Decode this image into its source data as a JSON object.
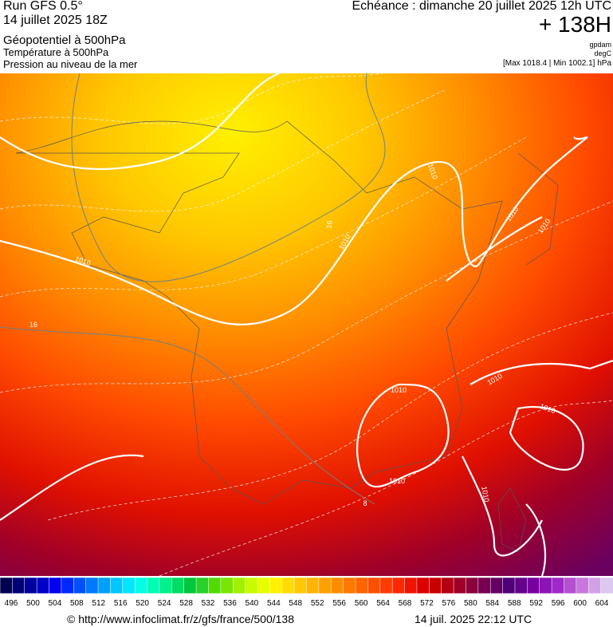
{
  "header": {
    "run": "Run GFS 0.5°",
    "date": "14 juillet 2025 18Z",
    "field1": "Géopotentiel à 500hPa",
    "field2": "Température à 500hPa",
    "field3": "Pression au niveau de la mer",
    "echeance": "Echéance : dimanche 20 juillet 2025 12h UTC",
    "lead": "+ 138H",
    "unit1": "gpdam",
    "unit2": "degC",
    "range": "[Max 1018.4 | Min 1002.1] hPa"
  },
  "contour_labels": [
    "1010",
    "1010",
    "1010",
    "1010",
    "1010",
    "1010",
    "1010",
    "1010",
    "1010",
    "1010",
    "16",
    "16",
    "8"
  ],
  "colorbar": {
    "labels": [
      496,
      500,
      504,
      508,
      512,
      516,
      520,
      524,
      528,
      532,
      536,
      540,
      544,
      548,
      552,
      556,
      560,
      564,
      568,
      572,
      576,
      580,
      584,
      588,
      592,
      596,
      600,
      604
    ],
    "colors": [
      "#000050",
      "#000078",
      "#0000a0",
      "#0000c8",
      "#0000f0",
      "#0028ff",
      "#0050ff",
      "#0078ff",
      "#00a0ff",
      "#00c8ff",
      "#00e6ff",
      "#00ffe6",
      "#00ffb4",
      "#00f08c",
      "#00dc64",
      "#00c83c",
      "#28d228",
      "#50dc00",
      "#78e600",
      "#a0f000",
      "#c8fa00",
      "#e6ff00",
      "#fff000",
      "#ffdc00",
      "#ffc800",
      "#ffb400",
      "#ffa000",
      "#ff8c00",
      "#ff7800",
      "#ff6400",
      "#ff5000",
      "#ff3c00",
      "#ff2800",
      "#f01400",
      "#dc0000",
      "#c80000",
      "#b40014",
      "#a00028",
      "#8c003c",
      "#780050",
      "#640064",
      "#500078",
      "#64008c",
      "#7800a0",
      "#8c14b4",
      "#a028c8",
      "#b450d2",
      "#c878dc",
      "#d2a0e6",
      "#dcc8f0"
    ]
  },
  "footer": {
    "url": "© http://www.infoclimat.fr/z/gfs/france/500/138",
    "timestamp": "14 juil. 2025 22:12 UTC"
  }
}
